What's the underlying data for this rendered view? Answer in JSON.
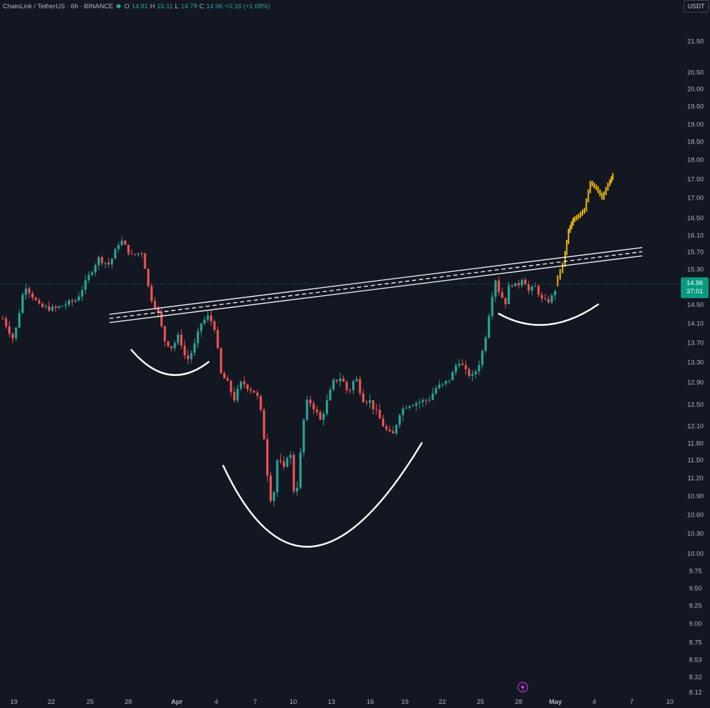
{
  "header": {
    "symbol": "ChainLink / TetherUS · 6h · BINANCE",
    "o_label": "O",
    "o_value": "14.81",
    "h_label": "H",
    "h_value": "15.11",
    "l_label": "L",
    "l_value": "14.78",
    "c_label": "C",
    "c_value": "14.96",
    "change": "+0.16 (+1.08%)"
  },
  "currency_button": "USDT",
  "last_price": {
    "value": "14.96",
    "countdown": "37:01"
  },
  "colors": {
    "background": "#131722",
    "up": "#26a69a",
    "down": "#ef5350",
    "projection": "#f0b90b",
    "drawing": "#ffffff",
    "axis_text": "#b2b5be"
  },
  "chart_data": {
    "type": "candlestick",
    "timeframe": "6h",
    "y_ticks": [
      "21.50",
      "20.50",
      "20.00",
      "19.50",
      "19.00",
      "18.50",
      "18.00",
      "17.50",
      "17.00",
      "16.50",
      "16.10",
      "15.70",
      "15.30",
      "14.50",
      "14.10",
      "13.70",
      "13.30",
      "12.90",
      "12.50",
      "12.10",
      "11.80",
      "11.50",
      "11.20",
      "10.90",
      "10.60",
      "10.30",
      "10.00",
      "9.75",
      "9.50",
      "9.25",
      "9.00",
      "8.75",
      "8.53",
      "8.32",
      "8.12"
    ],
    "x_ticks": [
      "19",
      "22",
      "25",
      "28",
      "Apr",
      "4",
      "7",
      "10",
      "13",
      "16",
      "19",
      "22",
      "25",
      "28",
      "May",
      "4",
      "7",
      "10"
    ],
    "path_points": [
      [
        0,
        14.2
      ],
      [
        1.5,
        13.75
      ],
      [
        3,
        14.95
      ],
      [
        5,
        14.45
      ],
      [
        7,
        14.4
      ],
      [
        10,
        14.6
      ],
      [
        13,
        15.55
      ],
      [
        14.5,
        15.4
      ],
      [
        16,
        16.0
      ],
      [
        17.5,
        15.6
      ],
      [
        19,
        15.7
      ],
      [
        20,
        14.7
      ],
      [
        21,
        14.4
      ],
      [
        22,
        13.75
      ],
      [
        23,
        13.6
      ],
      [
        24,
        13.85
      ],
      [
        25,
        13.3
      ],
      [
        26,
        13.6
      ],
      [
        27,
        14.1
      ],
      [
        28,
        14.25
      ],
      [
        29,
        13.95
      ],
      [
        29.5,
        13.1
      ],
      [
        30.5,
        12.9
      ],
      [
        31.5,
        12.6
      ],
      [
        32.5,
        12.9
      ],
      [
        34.5,
        12.7
      ],
      [
        35,
        12.45
      ],
      [
        35.6,
        11.85
      ],
      [
        36.2,
        11.0
      ],
      [
        36.7,
        10.75
      ],
      [
        37.4,
        11.55
      ],
      [
        38.2,
        11.3
      ],
      [
        39,
        11.75
      ],
      [
        39.6,
        11.0
      ],
      [
        40.2,
        11.1
      ],
      [
        40.8,
        12.1
      ],
      [
        41.5,
        12.6
      ],
      [
        42.3,
        12.45
      ],
      [
        43.2,
        12.2
      ],
      [
        44,
        12.5
      ],
      [
        45,
        12.9
      ],
      [
        46,
        13.0
      ],
      [
        47,
        12.7
      ],
      [
        48,
        13.0
      ],
      [
        49,
        12.6
      ],
      [
        50,
        12.55
      ],
      [
        51,
        12.3
      ],
      [
        52,
        12.05
      ],
      [
        53,
        11.9
      ],
      [
        54,
        12.35
      ],
      [
        55,
        12.5
      ],
      [
        57,
        12.55
      ],
      [
        58,
        12.6
      ],
      [
        59,
        12.8
      ],
      [
        60,
        12.85
      ],
      [
        61,
        13.0
      ],
      [
        62,
        13.35
      ],
      [
        63,
        13.1
      ],
      [
        64,
        13.0
      ],
      [
        65,
        13.35
      ],
      [
        65.6,
        13.75
      ],
      [
        66.4,
        14.55
      ],
      [
        67,
        15.1
      ],
      [
        67.6,
        14.75
      ],
      [
        68.4,
        14.55
      ],
      [
        69,
        15.0
      ],
      [
        70,
        14.9
      ],
      [
        70.8,
        15.15
      ],
      [
        71.5,
        14.8
      ],
      [
        72.5,
        14.9
      ],
      [
        73.5,
        14.55
      ],
      [
        74.5,
        14.6
      ],
      [
        75.5,
        14.96
      ]
    ],
    "projection_points": [
      [
        75.5,
        14.96
      ],
      [
        76.5,
        15.4
      ],
      [
        77.2,
        16.2
      ],
      [
        77.8,
        16.45
      ],
      [
        78.6,
        16.55
      ],
      [
        79.4,
        16.7
      ],
      [
        80.2,
        17.4
      ],
      [
        81,
        17.25
      ],
      [
        81.8,
        17.0
      ],
      [
        82.6,
        17.35
      ],
      [
        83.2,
        17.6
      ]
    ],
    "trendline": {
      "start": [
        14.5,
        14.2
      ],
      "end": [
        87,
        15.7
      ]
    },
    "arcs": [
      {
        "from": [
          17.5,
          13.55
        ],
        "control": [
          22.5,
          12.7
        ],
        "to": [
          28,
          13.3
        ]
      },
      {
        "from": [
          30,
          11.4
        ],
        "control": [
          41,
          8.8
        ],
        "to": [
          57,
          11.8
        ]
      },
      {
        "from": [
          67.5,
          14.3
        ],
        "control": [
          74,
          13.75
        ],
        "to": [
          81,
          14.5
        ]
      }
    ],
    "last_price_line": 14.96
  }
}
